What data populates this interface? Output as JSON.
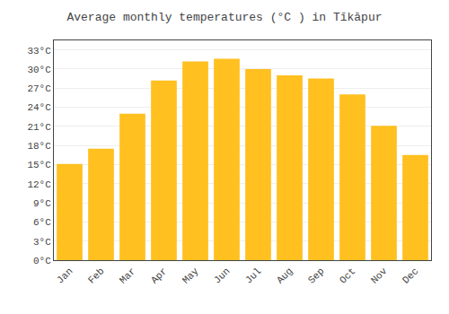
{
  "chart_data": {
    "type": "bar",
    "title": "Average monthly temperatures (°C ) in Tīkāpur",
    "categories": [
      "Jan",
      "Feb",
      "Mar",
      "Apr",
      "May",
      "Jun",
      "Jul",
      "Aug",
      "Sep",
      "Oct",
      "Nov",
      "Dec"
    ],
    "values": [
      15.1,
      17.5,
      23.0,
      28.2,
      31.2,
      31.6,
      30.0,
      29.0,
      28.5,
      26.0,
      21.1,
      16.5
    ],
    "color": "#FFC020",
    "ylim": [
      0,
      34.5
    ],
    "yticks": [
      {
        "value": 0,
        "label": "0°C"
      },
      {
        "value": 3,
        "label": "3°C"
      },
      {
        "value": 6,
        "label": "6°C"
      },
      {
        "value": 9,
        "label": "9°C"
      },
      {
        "value": 12,
        "label": "12°C"
      },
      {
        "value": 15,
        "label": "15°C"
      },
      {
        "value": 18,
        "label": "18°C"
      },
      {
        "value": 21,
        "label": "21°C"
      },
      {
        "value": 24,
        "label": "24°C"
      },
      {
        "value": 27,
        "label": "27°C"
      },
      {
        "value": 30,
        "label": "30°C"
      },
      {
        "value": 33,
        "label": "33°C"
      }
    ],
    "grid": true
  }
}
